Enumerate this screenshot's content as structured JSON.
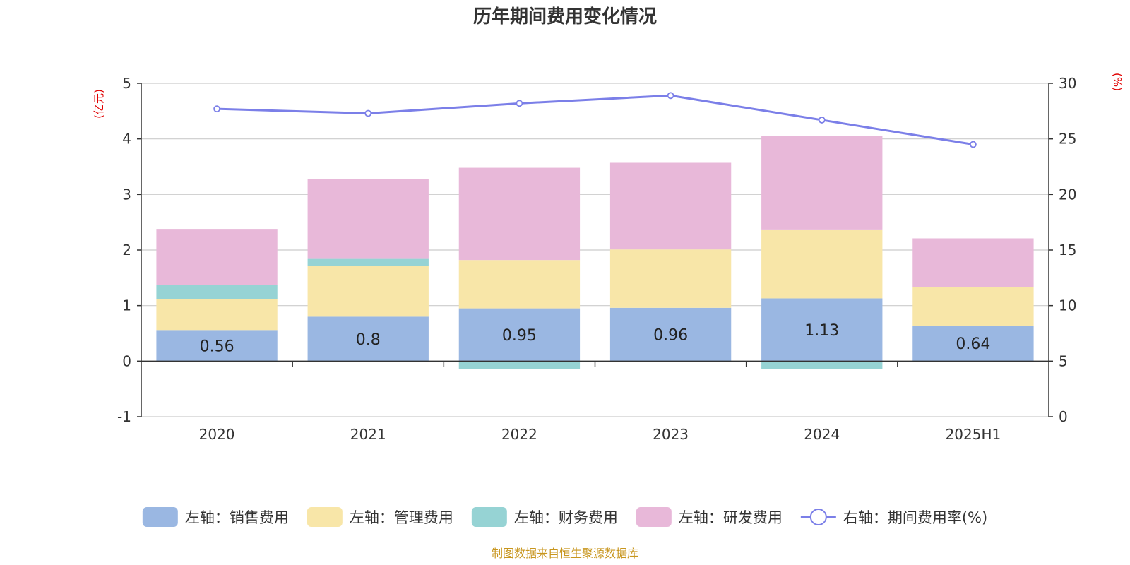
{
  "chart_data": {
    "type": "bar",
    "stacked": true,
    "title": "历年期间费用变化情况",
    "left_axis_unit": "(亿元)",
    "right_axis_unit": "(%)",
    "categories": [
      "2020",
      "2021",
      "2022",
      "2023",
      "2024",
      "2025H1"
    ],
    "left_axis": {
      "min": -1,
      "max": 5,
      "ticks": [
        -1,
        0,
        1,
        2,
        3,
        4,
        5
      ]
    },
    "right_axis": {
      "min": 0,
      "max": 30,
      "ticks": [
        0,
        5,
        10,
        15,
        20,
        25,
        30
      ]
    },
    "grid": true,
    "legend_position": "bottom",
    "series": [
      {
        "name": "左轴：销售费用",
        "axis": "left",
        "kind": "bar",
        "color": "#9ab7e2",
        "values": [
          0.56,
          0.8,
          0.95,
          0.96,
          1.13,
          0.64
        ],
        "show_labels": true
      },
      {
        "name": "左轴：管理费用",
        "axis": "left",
        "kind": "bar",
        "color": "#f8e6a8",
        "values": [
          0.56,
          0.91,
          0.87,
          1.05,
          1.24,
          0.69
        ],
        "show_labels": false
      },
      {
        "name": "左轴：财务费用",
        "axis": "left",
        "kind": "bar",
        "color": "#96d3d4",
        "values": [
          0.25,
          0.13,
          -0.14,
          -0.01,
          -0.14,
          -0.02
        ],
        "show_labels": false
      },
      {
        "name": "左轴：研发费用",
        "axis": "left",
        "kind": "bar",
        "color": "#e8b8d9",
        "values": [
          1.01,
          1.44,
          1.66,
          1.56,
          1.68,
          0.88
        ],
        "show_labels": false
      },
      {
        "name": "右轴：期间费用率(%)",
        "axis": "right",
        "kind": "line",
        "color": "#7b7fe8",
        "values": [
          27.7,
          27.3,
          28.2,
          28.9,
          26.7,
          24.5
        ]
      }
    ],
    "source": "制图数据来自恒生聚源数据库"
  }
}
